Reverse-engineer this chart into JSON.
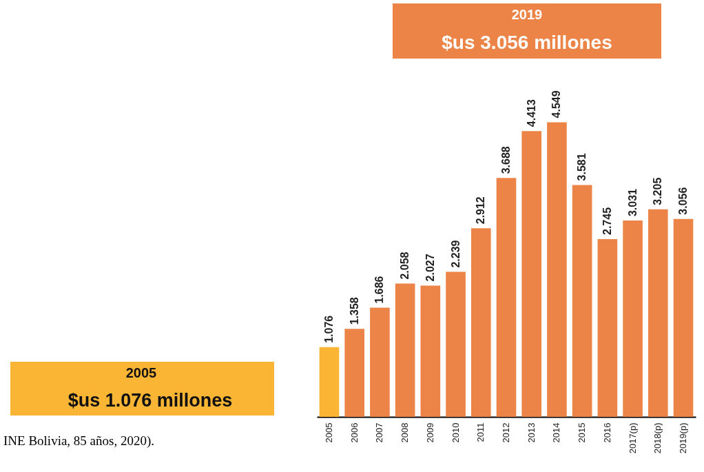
{
  "chart_data": {
    "type": "bar",
    "categories": [
      "2005",
      "2006",
      "2007",
      "2008",
      "2009",
      "2010",
      "2011",
      "2012",
      "2013",
      "2014",
      "2015",
      "2016",
      "2017(p)",
      "2018(p)",
      "2019(p)"
    ],
    "values": [
      1.076,
      1.358,
      1.686,
      2.058,
      2.027,
      2.239,
      2.912,
      3.688,
      4.413,
      4.549,
      3.581,
      2.745,
      3.031,
      3.205,
      3.056
    ],
    "colors": [
      "#fbb535",
      "#ec8447",
      "#ec8447",
      "#ec8447",
      "#ec8447",
      "#ec8447",
      "#ec8447",
      "#ec8447",
      "#ec8447",
      "#ec8447",
      "#ec8447",
      "#ec8447",
      "#ec8447",
      "#ec8447",
      "#ec8447"
    ],
    "data_labels": true,
    "annotations": [
      "2019",
      "$us 3.056 millones",
      "2005",
      "$us 1.076 millones",
      "INE Bolivia, 85 años, 2020)."
    ]
  }
}
